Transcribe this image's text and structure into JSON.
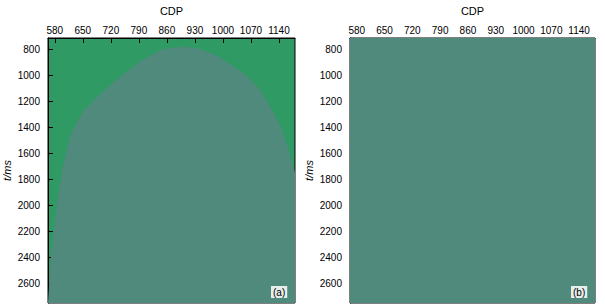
{
  "chart_data": [
    {
      "type": "area",
      "title": "(a)",
      "x_label": "CDP",
      "y_label": "t/ms",
      "xlim": [
        563,
        1180
      ],
      "xticks": [
        580,
        650,
        720,
        790,
        860,
        930,
        1000,
        1070,
        1140
      ],
      "ylim": [
        715,
        2750
      ],
      "yticks": [
        800,
        1000,
        1200,
        1400,
        1600,
        1800,
        2000,
        2200,
        2400,
        2600
      ],
      "x": [
        563,
        570,
        585,
        600,
        620,
        650,
        682,
        720,
        760,
        800,
        850,
        900,
        945,
        990,
        1050,
        1090,
        1120,
        1145,
        1165,
        1180
      ],
      "values": [
        2750,
        2400,
        2000,
        1700,
        1450,
        1280,
        1180,
        1070,
        970,
        880,
        800,
        780,
        800,
        860,
        980,
        1100,
        1250,
        1400,
        1580,
        1750
      ],
      "color": "#4f8a7c"
    },
    {
      "type": "area",
      "title": "(b)",
      "x_label": "CDP",
      "y_label": "t/ms",
      "xlim": [
        563,
        1180
      ],
      "xticks": [
        580,
        650,
        720,
        790,
        860,
        930,
        1000,
        1070,
        1140
      ],
      "ylim": [
        715,
        2750
      ],
      "yticks": [
        800,
        1000,
        1200,
        1400,
        1600,
        1800,
        2000,
        2200,
        2400,
        2600
      ],
      "x": [
        563,
        1180
      ],
      "values": [
        715,
        715
      ],
      "color": "#4f8a7c"
    }
  ]
}
